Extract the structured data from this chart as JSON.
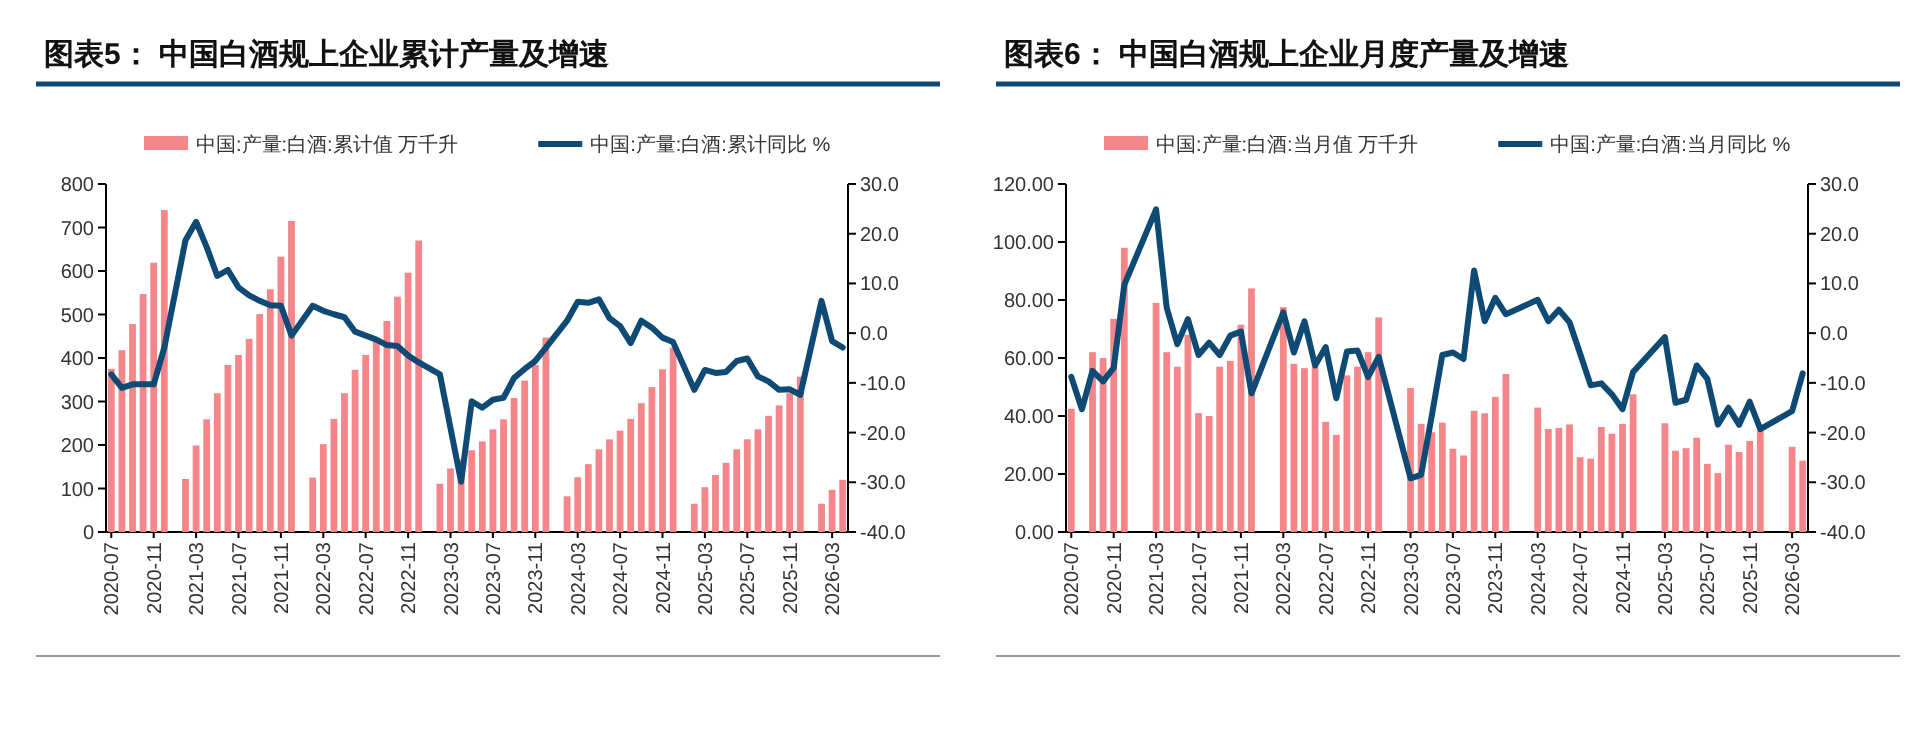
{
  "chart_data": [
    {
      "type": "bar",
      "title": "图表5： 中国白酒规上企业累计产量及增速",
      "legend": "top",
      "categories": [
        "2020-07",
        null,
        null,
        null,
        "2020-11",
        null,
        null,
        null,
        "2021-03",
        null,
        null,
        null,
        "2021-07",
        null,
        null,
        null,
        "2021-11",
        null,
        null,
        null,
        "2022-03",
        null,
        null,
        null,
        "2022-07",
        null,
        null,
        null,
        "2022-11",
        null,
        null,
        null,
        "2023-03",
        null,
        null,
        null,
        "2023-07",
        null,
        null,
        null,
        "2023-11",
        null,
        null,
        null,
        "2024-03",
        null,
        null,
        null,
        "2024-07",
        null,
        null,
        null,
        "2024-11",
        null,
        null,
        null,
        "2025-03",
        null,
        null,
        null,
        "2025-07",
        null,
        null,
        null,
        "2025-11",
        null,
        null,
        null,
        "2026-03",
        null
      ],
      "ylim": [
        0,
        800
      ],
      "yticks": [
        0,
        100,
        200,
        300,
        400,
        500,
        600,
        700,
        800
      ],
      "y2lim": [
        -40,
        30
      ],
      "y2ticks": [
        {
          "value": -40,
          "label": "-40.0"
        },
        {
          "value": -30,
          "label": "-30.0"
        },
        {
          "value": -20,
          "label": "-20.0"
        },
        {
          "value": -10,
          "label": "-10.0"
        },
        {
          "value": 0,
          "label": "0.0"
        },
        {
          "value": 10,
          "label": "10.0"
        },
        {
          "value": 20,
          "label": "20.0"
        },
        {
          "value": 30,
          "label": "30.0"
        }
      ],
      "series": [
        {
          "name": "中国:产量:白酒:累计值 万千升",
          "color": "#f4868a",
          "values": [
            375,
            418,
            478,
            547,
            619,
            740,
            null,
            122,
            199,
            259,
            319,
            384,
            407,
            444,
            501,
            558,
            633,
            715,
            null,
            125,
            202,
            260,
            319,
            373,
            407,
            439,
            485,
            541,
            596,
            670,
            null,
            111,
            146,
            167,
            188,
            208,
            236,
            259,
            308,
            348,
            384,
            447,
            null,
            82,
            126,
            156,
            190,
            213,
            233,
            260,
            296,
            333,
            374,
            424,
            null,
            65,
            103,
            131,
            159,
            190,
            213,
            236,
            267,
            291,
            319,
            357,
            null,
            65,
            97,
            120
          ]
        },
        {
          "type": "line",
          "axis": "y2",
          "name": "中国:产量:白酒:累计同比 %",
          "color": "#0e4a74",
          "values": [
            -8.3,
            -11.0,
            -10.3,
            -10.3,
            -10.3,
            -2.9,
            null,
            18.7,
            22.4,
            17.3,
            11.5,
            12.7,
            9.2,
            7.6,
            6.5,
            5.6,
            5.5,
            -0.5,
            null,
            5.5,
            4.5,
            3.8,
            3.2,
            0.3,
            -0.5,
            -1.3,
            -2.4,
            -2.6,
            -4.5,
            -5.9,
            null,
            -8.3,
            -19.1,
            -29.9,
            -13.7,
            -15.0,
            -13.4,
            -13.0,
            -9.0,
            -7.2,
            -5.6,
            -2.9,
            null,
            2.5,
            6.3,
            6.1,
            6.8,
            3.0,
            1.4,
            -2.0,
            2.5,
            1.1,
            -0.9,
            -1.8,
            null,
            -11.4,
            -7.4,
            -8.0,
            -7.8,
            -5.6,
            -5.1,
            -8.7,
            -9.7,
            -11.4,
            -11.3,
            -12.4,
            null,
            6.5,
            -1.6,
            -2.9
          ]
        }
      ]
    },
    {
      "type": "bar",
      "title": "图表6： 中国白酒规上企业月度产量及增速",
      "legend": "top",
      "categories": [
        "2020-07",
        null,
        null,
        null,
        "2020-11",
        null,
        null,
        null,
        "2021-03",
        null,
        null,
        null,
        "2021-07",
        null,
        null,
        null,
        "2021-11",
        null,
        null,
        null,
        "2022-03",
        null,
        null,
        null,
        "2022-07",
        null,
        null,
        null,
        "2022-11",
        null,
        null,
        null,
        "2023-03",
        null,
        null,
        null,
        "2023-07",
        null,
        null,
        null,
        "2023-11",
        null,
        null,
        null,
        "2024-03",
        null,
        null,
        null,
        "2024-07",
        null,
        null,
        null,
        "2024-11",
        null,
        null,
        null,
        "2025-03",
        null,
        null,
        null,
        "2025-07",
        null,
        null,
        null,
        "2025-11",
        null,
        null,
        null,
        "2026-03",
        null
      ],
      "ylim": [
        0,
        120
      ],
      "yticks": [
        {
          "value": 0,
          "label": "0.00"
        },
        {
          "value": 20,
          "label": "20.00"
        },
        {
          "value": 40,
          "label": "40.00"
        },
        {
          "value": 60,
          "label": "60.00"
        },
        {
          "value": 80,
          "label": "80.00"
        },
        {
          "value": 100,
          "label": "100.00"
        },
        {
          "value": 120,
          "label": "120.00"
        }
      ],
      "y2lim": [
        -40,
        30
      ],
      "y2ticks": [
        {
          "value": -40,
          "label": "-40.0"
        },
        {
          "value": -30,
          "label": "-30.0"
        },
        {
          "value": -20,
          "label": "-20.0"
        },
        {
          "value": -10,
          "label": "-10.0"
        },
        {
          "value": 0,
          "label": "0.0"
        },
        {
          "value": 10,
          "label": "10.0"
        },
        {
          "value": 20,
          "label": "20.0"
        },
        {
          "value": 30,
          "label": "30.0"
        }
      ],
      "series": [
        {
          "name": "中国:产量:白酒:当月值 万千升",
          "color": "#f4868a",
          "values": [
            42.5,
            null,
            62,
            60,
            73.5,
            98,
            null,
            null,
            79,
            62,
            57,
            68,
            41,
            40,
            57,
            59,
            71.5,
            84,
            null,
            null,
            77.5,
            58,
            56.5,
            57,
            38,
            33.5,
            54,
            57,
            62,
            74,
            null,
            null,
            49.7,
            37.3,
            34.4,
            37.7,
            28.7,
            26.4,
            41.8,
            40.9,
            46.6,
            54.5,
            null,
            null,
            42.9,
            35.5,
            35.9,
            37.1,
            25.8,
            25.3,
            36.2,
            33.9,
            37.3,
            47.5,
            null,
            null,
            37.5,
            28.0,
            28.9,
            32.5,
            23.5,
            20.3,
            30.1,
            27.6,
            31.4,
            35.0,
            null,
            null,
            29.4,
            24.6
          ]
        },
        {
          "type": "line",
          "axis": "y2",
          "name": "中国:产量:白酒:当月同比 %",
          "color": "#0e4a74",
          "values": [
            -8.8,
            -15.3,
            -7.6,
            -9.7,
            -7.0,
            9.7,
            null,
            null,
            24.9,
            5.1,
            -2.2,
            2.8,
            -4.4,
            -1.9,
            -4.4,
            -0.5,
            0.3,
            -12.1,
            null,
            null,
            4.2,
            -3.9,
            2.4,
            -6.5,
            -2.8,
            -13.1,
            -3.7,
            -3.5,
            -8.8,
            -4.8,
            null,
            null,
            -29.2,
            -28.5,
            -16.7,
            -4.4,
            -3.9,
            -5.2,
            12.6,
            2.4,
            7.1,
            3.8,
            null,
            null,
            6.7,
            2.4,
            4.7,
            2.2,
            -4.1,
            -10.5,
            -10.1,
            -12.3,
            -15.3,
            -7.8,
            null,
            null,
            -0.8,
            -14.0,
            -13.4,
            -6.5,
            -9.2,
            -18.4,
            -15.0,
            -18.4,
            -13.8,
            -19.3,
            null,
            null,
            -15.7,
            -8.1
          ]
        }
      ]
    }
  ]
}
